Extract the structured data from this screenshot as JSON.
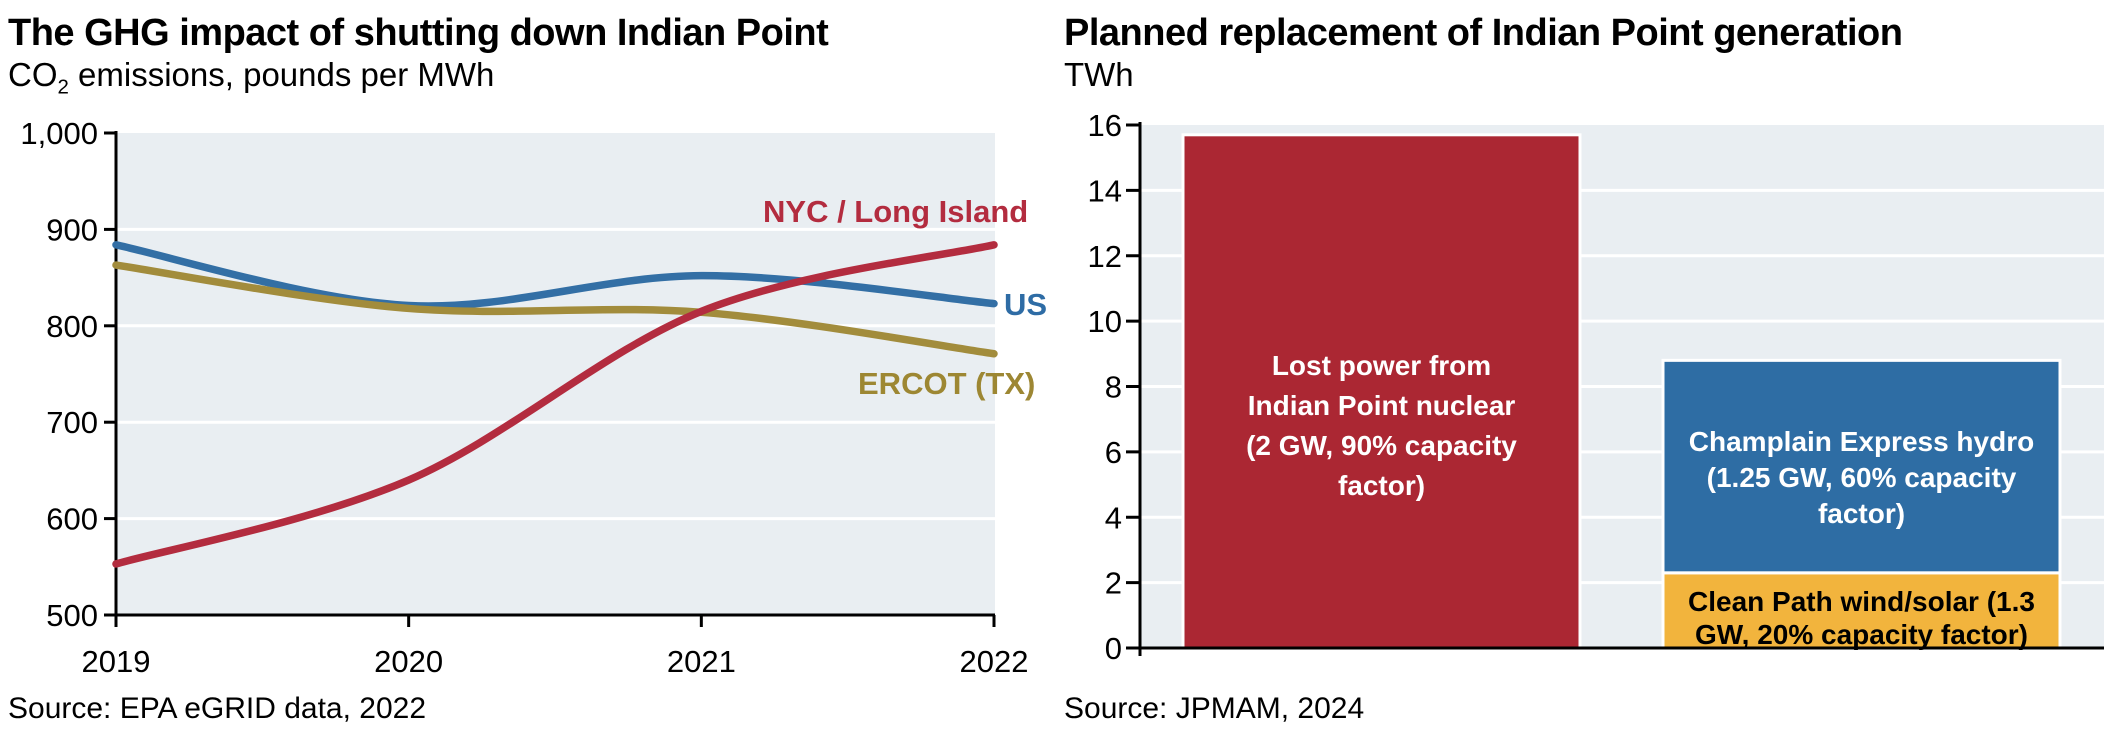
{
  "colors": {
    "bar_red": "#ab2733",
    "bar_blue": "#2e6da4",
    "bar_yellow": "#f2b43d",
    "line_red": "#b32c3f",
    "line_blue": "#336fa5",
    "line_gold": "#a28c3c",
    "label_red": "#b32c3f",
    "label_blue": "#2e6ca5",
    "label_gold": "#9d8733",
    "plot_bg": "#e9eef2",
    "gridline": "#ffffff",
    "axis": "#000000",
    "bar_stroke": "#ffffff"
  },
  "left_chart": {
    "title": "The GHG impact of shutting down Indian Point",
    "subtitle_prefix": "CO",
    "subtitle_sub": "2",
    "subtitle_rest": " emissions, pounds per MWh",
    "source": "Source: EPA eGRID data, 2022",
    "series_labels": {
      "nyc": "NYC / Long Island",
      "us": "US",
      "ercot": "ERCOT (TX)"
    }
  },
  "right_chart": {
    "title": "Planned replacement of Indian Point generation",
    "subtitle": "TWh",
    "source": "Source: JPMAM, 2024",
    "bar_labels": {
      "nuclear": "Lost power from\nIndian Point nuclear\n(2 GW, 90% capacity\nfactor)",
      "hydro": "Champlain Express hydro\n(1.25 GW, 60% capacity\nfactor)",
      "wind_solar": "Clean Path wind/solar (1.3\nGW, 20% capacity factor)"
    }
  },
  "chart_data": [
    {
      "type": "line",
      "title": "The GHG impact of shutting down Indian Point",
      "subtitle": "CO2 emissions, pounds per MWh",
      "xlabel": "",
      "ylabel": "CO2 emissions, pounds per MWh",
      "x": [
        2019,
        2020,
        2021,
        2022
      ],
      "xticklabels": [
        "2019",
        "2020",
        "2021",
        "2022"
      ],
      "series": [
        {
          "name": "US",
          "color_key": "line_blue",
          "values": [
            884,
            821,
            852,
            823
          ]
        },
        {
          "name": "ERCOT (TX)",
          "color_key": "line_gold",
          "values": [
            863,
            818,
            814,
            771
          ]
        },
        {
          "name": "NYC / Long Island",
          "color_key": "line_red",
          "values": [
            553,
            640,
            815,
            884
          ]
        }
      ],
      "ylim": [
        500,
        1000
      ],
      "yticks": [
        500,
        600,
        700,
        800,
        900,
        1000
      ],
      "grid": true,
      "legend_position": "end-of-line labels",
      "source": "Source: EPA eGRID data, 2022"
    },
    {
      "type": "bar",
      "title": "Planned replacement of Indian Point generation",
      "ylabel": "TWh",
      "ylim": [
        0,
        16
      ],
      "yticks": [
        0,
        2,
        4,
        6,
        8,
        10,
        12,
        14,
        16
      ],
      "grid": true,
      "bars": [
        {
          "name": "indian-point-nuclear-bar",
          "segments": [
            {
              "name": "Lost power from Indian Point nuclear (2 GW, 90% capacity factor)",
              "value": 15.7,
              "color_key": "bar_red"
            }
          ]
        },
        {
          "name": "replacement-stacked-bar",
          "segments": [
            {
              "name": "Clean Path wind/solar (1.3 GW, 20% capacity factor)",
              "value": 2.3,
              "color_key": "bar_yellow"
            },
            {
              "name": "Champlain Express hydro (1.25 GW, 60% capacity factor)",
              "value": 6.5,
              "color_key": "bar_blue"
            }
          ]
        }
      ],
      "source": "Source: JPMAM, 2024"
    }
  ]
}
